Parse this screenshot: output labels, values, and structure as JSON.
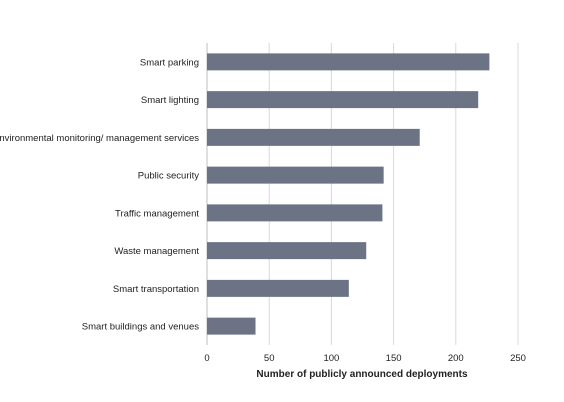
{
  "chart_data": {
    "type": "bar",
    "orientation": "horizontal",
    "categories": [
      "Smart parking",
      "Smart lighting",
      "Environmental monitoring/ management services",
      "Public security",
      "Traffic management",
      "Waste management",
      "Smart transportation",
      "Smart buildings and venues"
    ],
    "values": [
      227,
      218,
      171,
      142,
      141,
      128,
      114,
      39
    ],
    "title": "",
    "xlabel": "Number of publicly announced deployments",
    "ylabel": "",
    "xlim": [
      0,
      250
    ],
    "xticks": [
      "0",
      "50",
      "100",
      "150",
      "200",
      "250"
    ],
    "grid": "vertical",
    "legend": "none",
    "colors": {
      "bar": "#6b7385",
      "grid": "#d9d9d9",
      "text": "#222222"
    }
  }
}
